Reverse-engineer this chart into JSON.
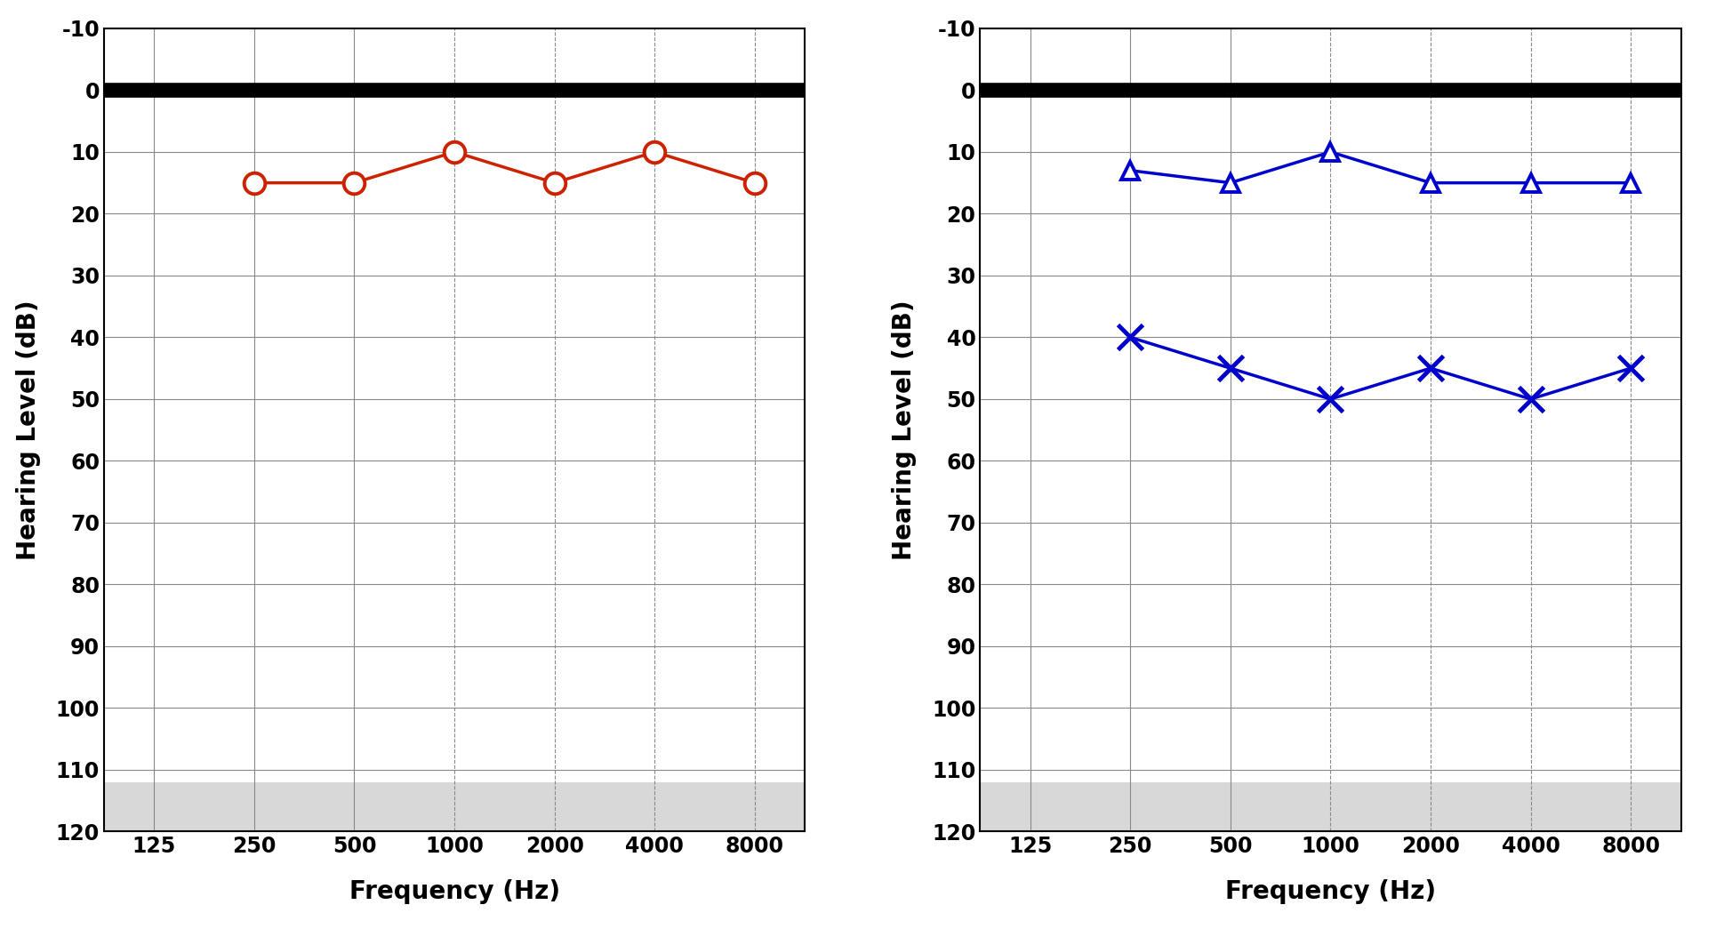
{
  "frequencies": [
    125,
    250,
    500,
    1000,
    2000,
    4000,
    8000
  ],
  "freq_labels": [
    "125",
    "250",
    "500",
    "1000",
    "2000",
    "4000",
    "8000"
  ],
  "left_air": [
    null,
    15,
    15,
    10,
    15,
    10,
    15
  ],
  "left_color": "#cc2200",
  "right_air": [
    null,
    13,
    15,
    10,
    15,
    15,
    15
  ],
  "right_bone": [
    null,
    40,
    45,
    50,
    45,
    50,
    45
  ],
  "right_color": "#0000cc",
  "y_min": -10,
  "y_max": 120,
  "y_ticks": [
    -10,
    0,
    10,
    20,
    30,
    40,
    50,
    60,
    70,
    80,
    90,
    100,
    110,
    120
  ],
  "xlabel": "Frequency (Hz)",
  "ylabel": "Hearing Level (dB)",
  "background_color": "#ffffff",
  "plot_bg_color": "#ffffff",
  "shaded_region_color": "#d8d8d8",
  "grid_color": "#888888",
  "solid_vline_indices": [
    0,
    1,
    2
  ],
  "dashed_vline_indices": [
    3,
    4,
    5,
    6
  ]
}
